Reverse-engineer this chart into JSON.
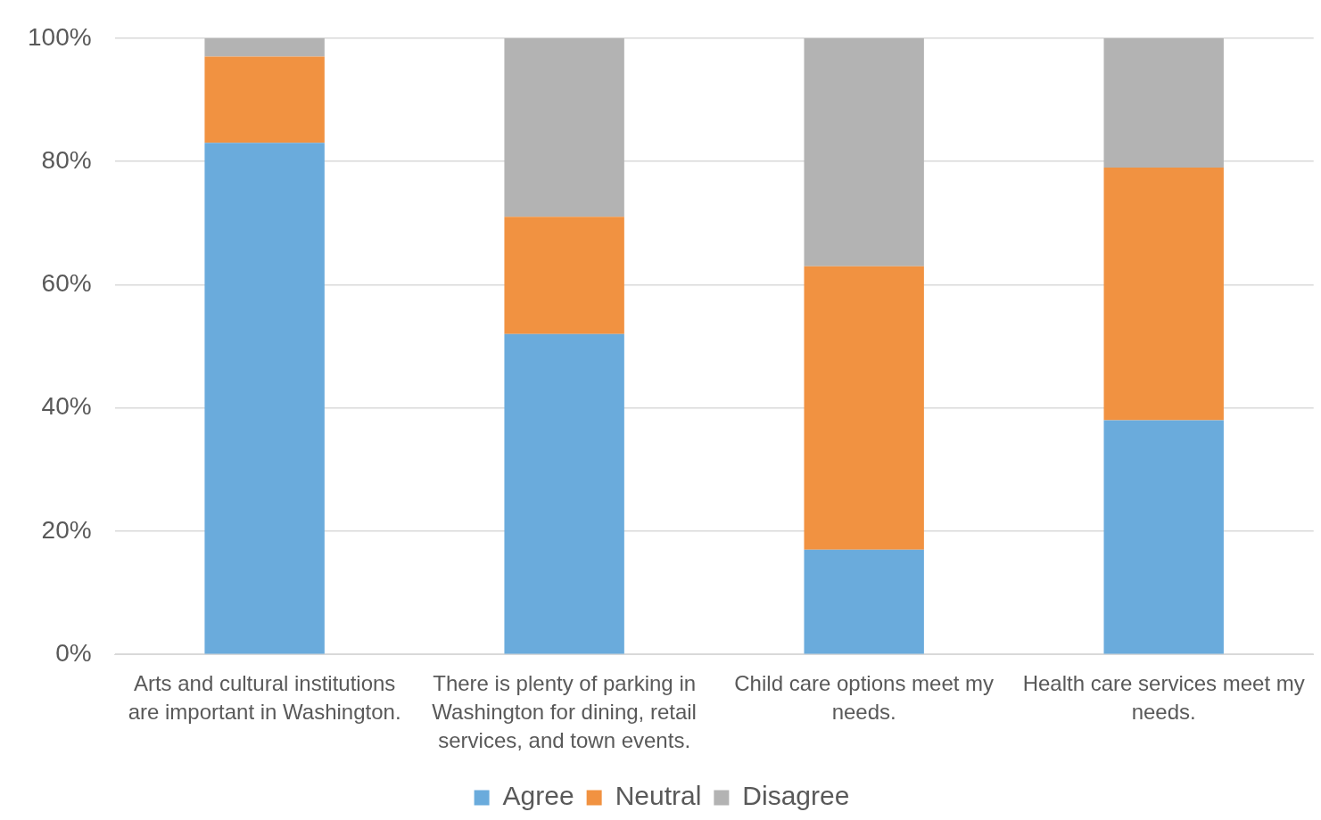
{
  "chart_data": {
    "type": "bar",
    "stacked": true,
    "categories": [
      "Arts and cultural institutions are important in Washington.",
      "There is plenty of parking in Washington for dining, retail services, and town events.",
      "Child care options meet my needs.",
      "Health care services meet my needs."
    ],
    "series": [
      {
        "name": "Agree",
        "color": "#6aabdc",
        "values": [
          83,
          52,
          17,
          38
        ]
      },
      {
        "name": "Neutral",
        "color": "#f19241",
        "values": [
          14,
          19,
          46,
          41
        ]
      },
      {
        "name": "Disagree",
        "color": "#b3b3b3",
        "values": [
          3,
          29,
          37,
          21
        ]
      }
    ],
    "ylim": [
      0,
      100
    ],
    "yticks": [
      {
        "value": 0,
        "label": "0%"
      },
      {
        "value": 20,
        "label": "20%"
      },
      {
        "value": 40,
        "label": "40%"
      },
      {
        "value": 60,
        "label": "60%"
      },
      {
        "value": 80,
        "label": "80%"
      },
      {
        "value": 100,
        "label": "100%"
      }
    ],
    "grid": "y",
    "legend": "bottom"
  }
}
